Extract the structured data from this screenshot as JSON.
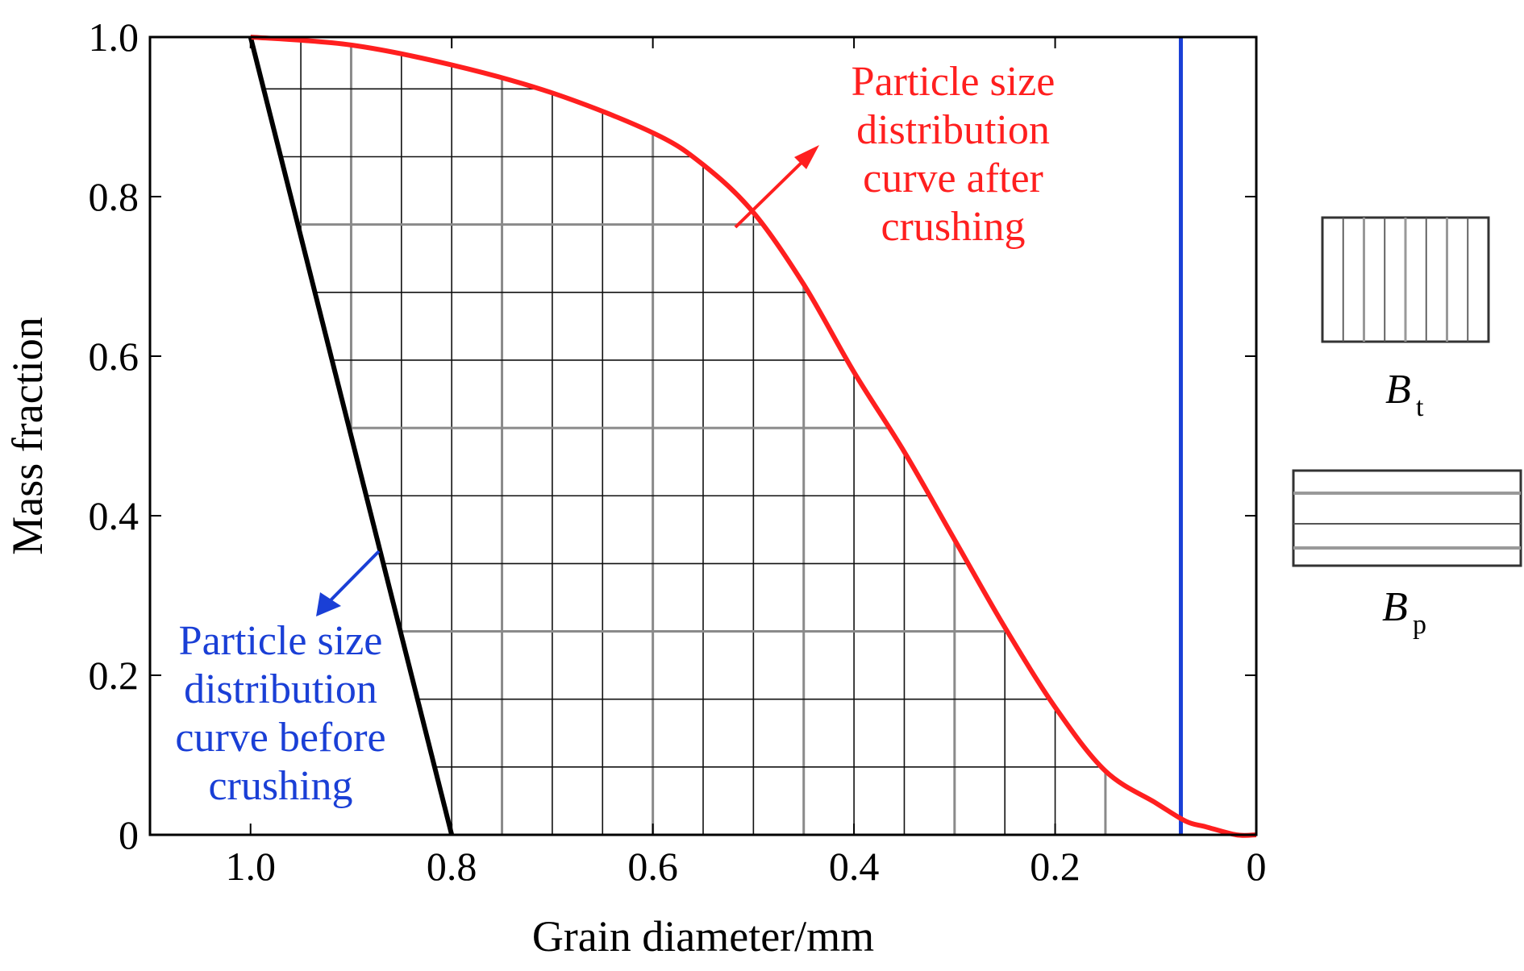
{
  "chart_data": {
    "type": "line",
    "xlabel": "Grain diameter/mm",
    "ylabel": "Mass fraction",
    "xlim": [
      1.1,
      0
    ],
    "ylim": [
      0,
      1.0
    ],
    "x_reversed": true,
    "xticks": [
      1.0,
      0.8,
      0.6,
      0.4,
      0.2,
      0
    ],
    "xtick_labels": [
      "1.0",
      "0.8",
      "0.6",
      "0.4",
      "0.2",
      "0"
    ],
    "yticks": [
      0,
      0.2,
      0.4,
      0.6,
      0.8,
      1.0
    ],
    "ytick_labels": [
      "0",
      "0.2",
      "0.4",
      "0.6",
      "0.8",
      "1.0"
    ],
    "grid": false,
    "series": [
      {
        "name": "Particle size distribution curve before crushing",
        "color": "#000000",
        "x": [
          1.0,
          0.8
        ],
        "y": [
          1.0,
          0.0
        ]
      },
      {
        "name": "Particle size distribution curve after crushing",
        "color": "#ff1f1f",
        "x": [
          1.0,
          0.9,
          0.8,
          0.7,
          0.6,
          0.55,
          0.5,
          0.45,
          0.4,
          0.35,
          0.3,
          0.25,
          0.2,
          0.15,
          0.1,
          0.07,
          0.05,
          0.02,
          0.0
        ],
        "y": [
          1.0,
          0.99,
          0.965,
          0.93,
          0.88,
          0.84,
          0.78,
          0.69,
          0.58,
          0.48,
          0.37,
          0.26,
          0.16,
          0.08,
          0.04,
          0.017,
          0.01,
          0.0,
          0.0
        ]
      }
    ],
    "vertical_line": {
      "x": 0.075,
      "color": "#1a3fd6"
    },
    "annotations": {
      "after": {
        "lines": [
          "Particle size",
          "distribution",
          "curve after",
          "crushing"
        ],
        "color": "#ff1f1f"
      },
      "before": {
        "lines": [
          "Particle size",
          "distribution",
          "curve before",
          "crushing"
        ],
        "color": "#1a3fd6"
      }
    },
    "legend": {
      "placement": "right",
      "items": [
        {
          "symbol": "B",
          "subscript": "t",
          "pattern": "vertical-hatch"
        },
        {
          "symbol": "B",
          "subscript": "p",
          "pattern": "horizontal-hatch"
        }
      ]
    }
  }
}
